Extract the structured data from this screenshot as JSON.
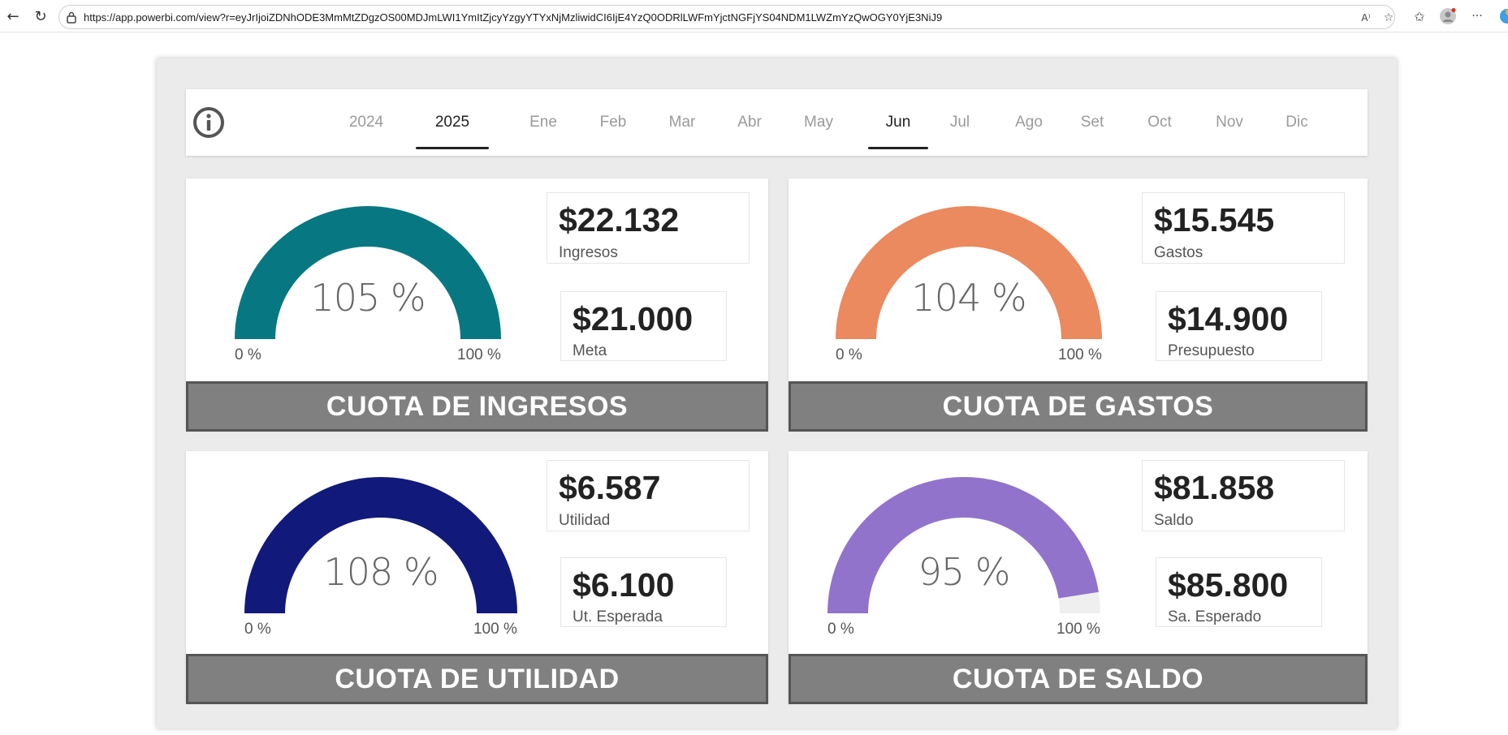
{
  "browser": {
    "url": "https://app.powerbi.com/view?r=eyJrIjoiZDNhODE3MmMtZDgzOS00MDJmLWI1YmItZjcyYzgyYTYxNjMzliwidCI6IjE4YzQ0ODRlLWFmYjctNGFjYS04NDM1LWZmYzQwOGY0YjE3NiJ9",
    "read_aloud_glyph": "A⁾"
  },
  "slicer": {
    "years": [
      "2024",
      "2025"
    ],
    "selected_year": "2025",
    "months": [
      "Ene",
      "Feb",
      "Mar",
      "Abr",
      "May",
      "Jun",
      "Jul",
      "Ago",
      "Set",
      "Oct",
      "Nov",
      "Dic"
    ],
    "selected_month": "Jun"
  },
  "cards": [
    {
      "title": "CUOTA DE INGRESOS",
      "gauge": {
        "percent_label": "105 %",
        "fill_fraction": 1.0,
        "color": "#077882",
        "min_label": "0 %",
        "max_label": "100 %"
      },
      "kpi_main": {
        "value": "$22.132",
        "label": "Ingresos"
      },
      "kpi_target": {
        "value": "$21.000",
        "label": "Meta"
      }
    },
    {
      "title": "CUOTA DE GASTOS",
      "gauge": {
        "percent_label": "104 %",
        "fill_fraction": 1.0,
        "color": "#EA8A5E",
        "min_label": "0 %",
        "max_label": "100 %"
      },
      "kpi_main": {
        "value": "$15.545",
        "label": "Gastos"
      },
      "kpi_target": {
        "value": "$14.900",
        "label": "Presupuesto"
      }
    },
    {
      "title": "CUOTA DE UTILIDAD",
      "gauge": {
        "percent_label": "108 %",
        "fill_fraction": 1.0,
        "color": "#111A7A",
        "min_label": "0 %",
        "max_label": "100 %"
      },
      "kpi_main": {
        "value": "$6.587",
        "label": "Utilidad"
      },
      "kpi_target": {
        "value": "$6.100",
        "label": "Ut. Esperada"
      }
    },
    {
      "title": "CUOTA DE SALDO",
      "gauge": {
        "percent_label": "95 %",
        "fill_fraction": 0.95,
        "color": "#9173CC",
        "min_label": "0 %",
        "max_label": "100 %"
      },
      "kpi_main": {
        "value": "$81.858",
        "label": "Saldo"
      },
      "kpi_target": {
        "value": "$85.800",
        "label": "Sa. Esperado"
      }
    }
  ],
  "colors": {
    "gauge_track": "#EFEFEF",
    "title_bar": "#808080"
  }
}
